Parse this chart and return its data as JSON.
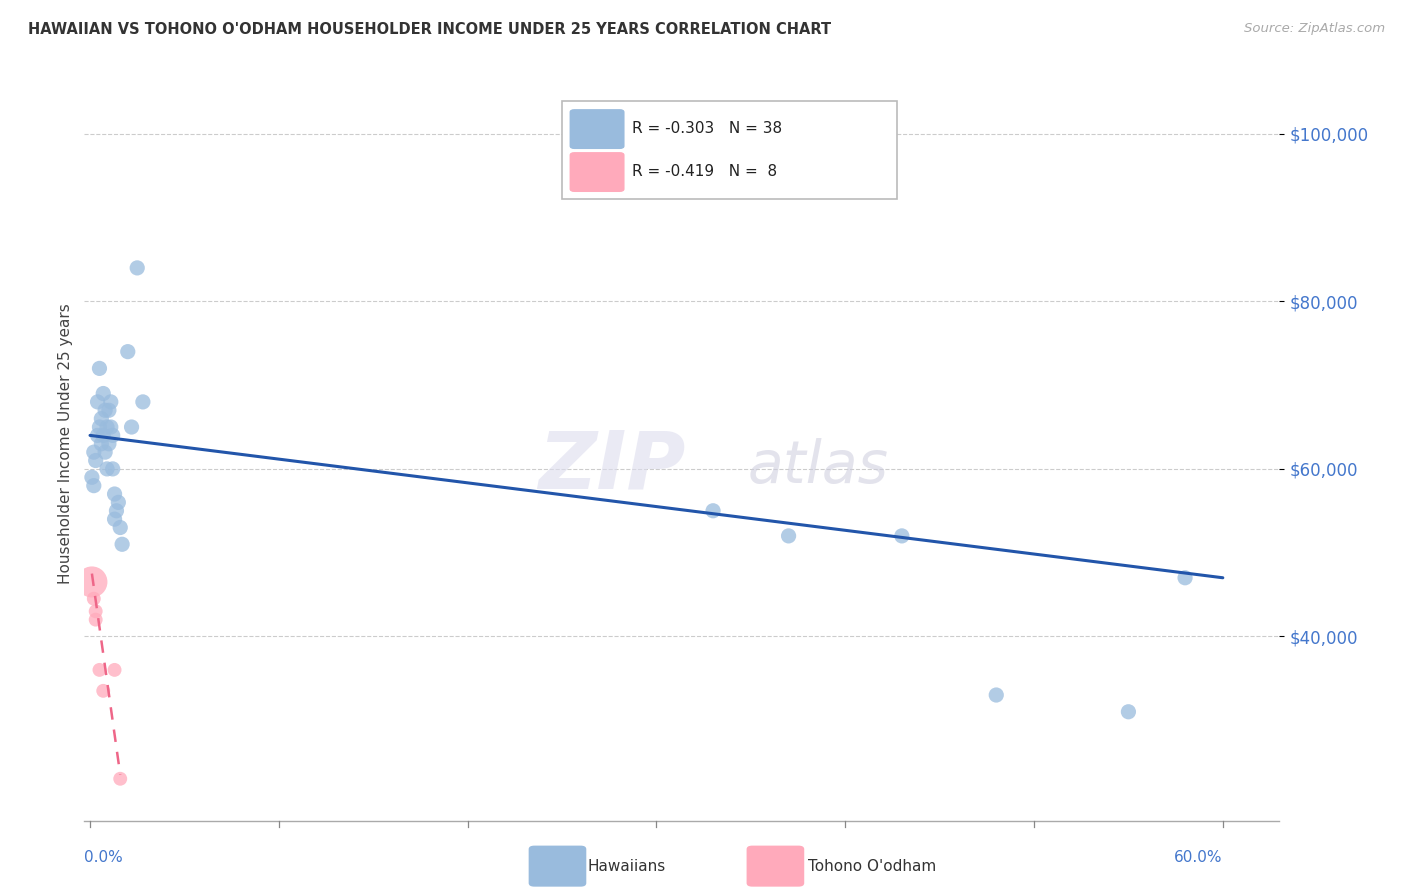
{
  "title": "HAWAIIAN VS TOHONO O'ODHAM HOUSEHOLDER INCOME UNDER 25 YEARS CORRELATION CHART",
  "source": "Source: ZipAtlas.com",
  "ylabel": "Householder Income Under 25 years",
  "ytick_labels": [
    "$40,000",
    "$60,000",
    "$80,000",
    "$100,000"
  ],
  "ytick_values": [
    40000,
    60000,
    80000,
    100000
  ],
  "ylim": [
    18000,
    108000
  ],
  "xlim": [
    -0.003,
    0.63
  ],
  "watermark_zip": "ZIP",
  "watermark_atlas": "atlas",
  "legend_blue_r": "-0.303",
  "legend_blue_n": "38",
  "legend_pink_r": "-0.419",
  "legend_pink_n": " 8",
  "blue_dot_color": "#99BBDD",
  "pink_dot_color": "#FFAABB",
  "line_blue_color": "#2255AA",
  "line_pink_color": "#EE6688",
  "tick_color": "#4477CC",
  "hawaiians_x": [
    0.001,
    0.002,
    0.002,
    0.003,
    0.004,
    0.004,
    0.005,
    0.005,
    0.006,
    0.006,
    0.007,
    0.007,
    0.008,
    0.008,
    0.009,
    0.009,
    0.01,
    0.01,
    0.011,
    0.011,
    0.012,
    0.012,
    0.013,
    0.013,
    0.014,
    0.015,
    0.016,
    0.017,
    0.02,
    0.022,
    0.025,
    0.028,
    0.33,
    0.37,
    0.43,
    0.48,
    0.55,
    0.58
  ],
  "hawaiians_y": [
    59000,
    58000,
    62000,
    61000,
    64000,
    68000,
    65000,
    72000,
    66000,
    63000,
    64000,
    69000,
    67000,
    62000,
    65000,
    60000,
    67000,
    63000,
    68000,
    65000,
    64000,
    60000,
    57000,
    54000,
    55000,
    56000,
    53000,
    51000,
    74000,
    65000,
    84000,
    68000,
    55000,
    52000,
    52000,
    33000,
    31000,
    47000
  ],
  "tohono_x": [
    0.001,
    0.002,
    0.003,
    0.003,
    0.005,
    0.007,
    0.013,
    0.016
  ],
  "tohono_y": [
    46500,
    44500,
    43000,
    42000,
    36000,
    33500,
    36000,
    23000
  ],
  "tohono_sizes": [
    500,
    100,
    100,
    100,
    100,
    100,
    100,
    100
  ],
  "blue_trend_x": [
    0.0,
    0.6
  ],
  "blue_trend_y": [
    64000,
    47000
  ],
  "pink_trend_x": [
    0.001,
    0.016
  ],
  "pink_trend_y": [
    47500,
    23500
  ]
}
